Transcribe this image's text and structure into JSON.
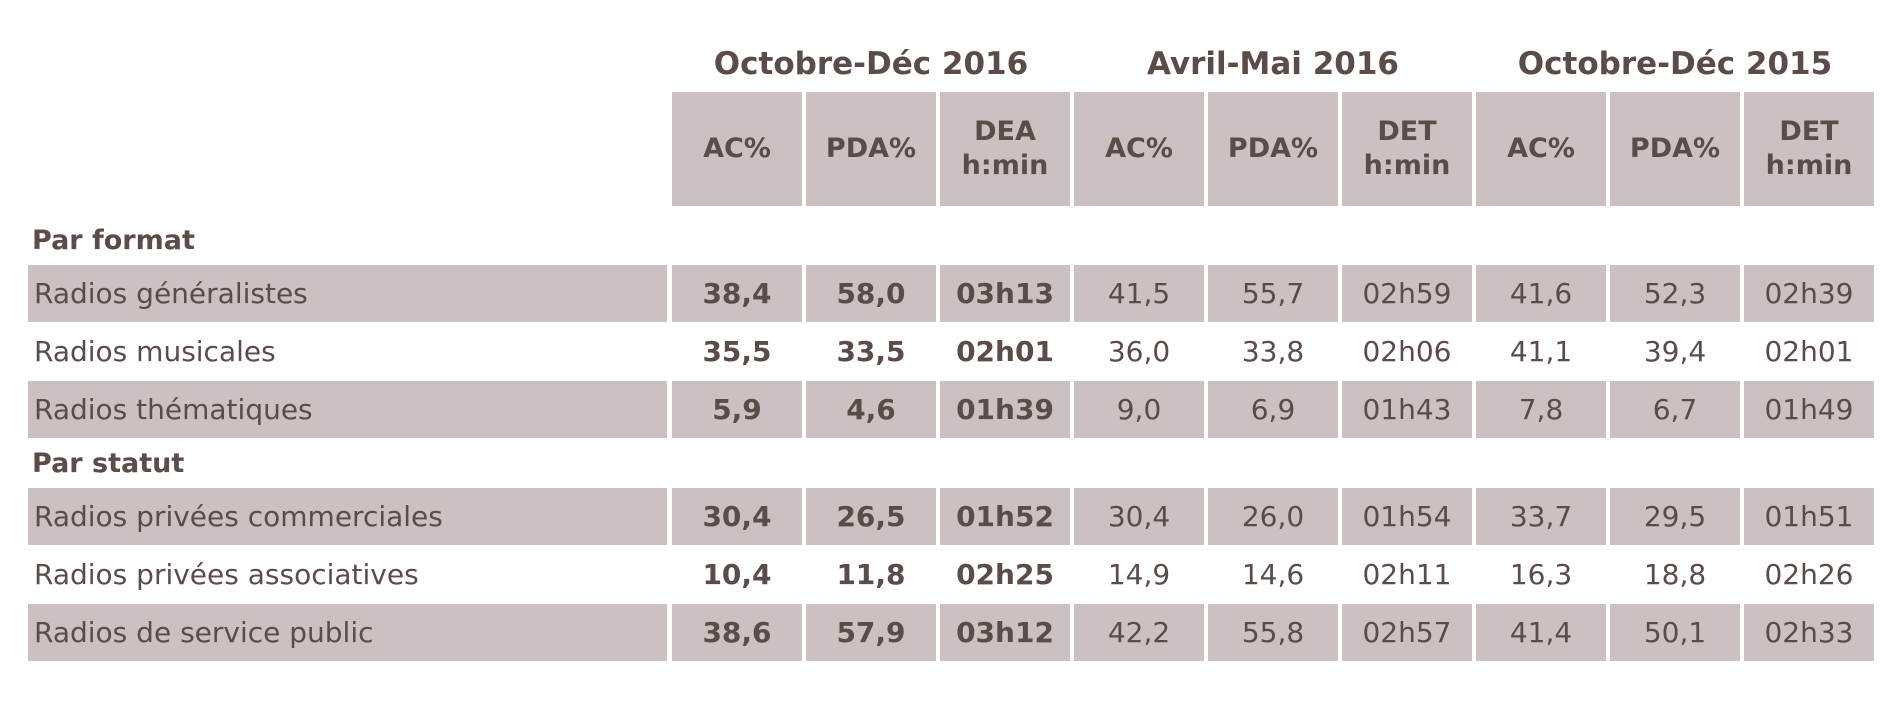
{
  "table": {
    "groups": [
      "Octobre-Déc 2016",
      "Avril-Mai 2016",
      "Octobre-Déc 2015"
    ],
    "columns": [
      [
        "AC%",
        "PDA%",
        "DEA\nh:min"
      ],
      [
        "AC%",
        "PDA%",
        "DET\nh:min"
      ],
      [
        "AC%",
        "PDA%",
        "DET\nh:min"
      ]
    ],
    "sections": [
      {
        "title": "Par format",
        "rows": [
          {
            "label": "Radios généralistes",
            "values": [
              "38,4",
              "58,0",
              "03h13",
              "41,5",
              "55,7",
              "02h59",
              "41,6",
              "52,3",
              "02h39"
            ]
          },
          {
            "label": "Radios musicales",
            "values": [
              "35,5",
              "33,5",
              "02h01",
              "36,0",
              "33,8",
              "02h06",
              "41,1",
              "39,4",
              "02h01"
            ]
          },
          {
            "label": "Radios thématiques",
            "values": [
              "5,9",
              "4,6",
              "01h39",
              "9,0",
              "6,9",
              "01h43",
              "7,8",
              "6,7",
              "01h49"
            ]
          }
        ]
      },
      {
        "title": "Par statut",
        "rows": [
          {
            "label": "Radios privées commerciales",
            "values": [
              "30,4",
              "26,5",
              "01h52",
              "30,4",
              "26,0",
              "01h54",
              "33,7",
              "29,5",
              "01h51"
            ]
          },
          {
            "label": "Radios privées associatives",
            "values": [
              "10,4",
              "11,8",
              "02h25",
              "14,9",
              "14,6",
              "02h11",
              "16,3",
              "18,8",
              "02h26"
            ]
          },
          {
            "label": "Radios de service public",
            "values": [
              "38,6",
              "57,9",
              "03h12",
              "42,2",
              "55,8",
              "02h57",
              "41,4",
              "50,1",
              "02h33"
            ]
          }
        ]
      }
    ]
  }
}
